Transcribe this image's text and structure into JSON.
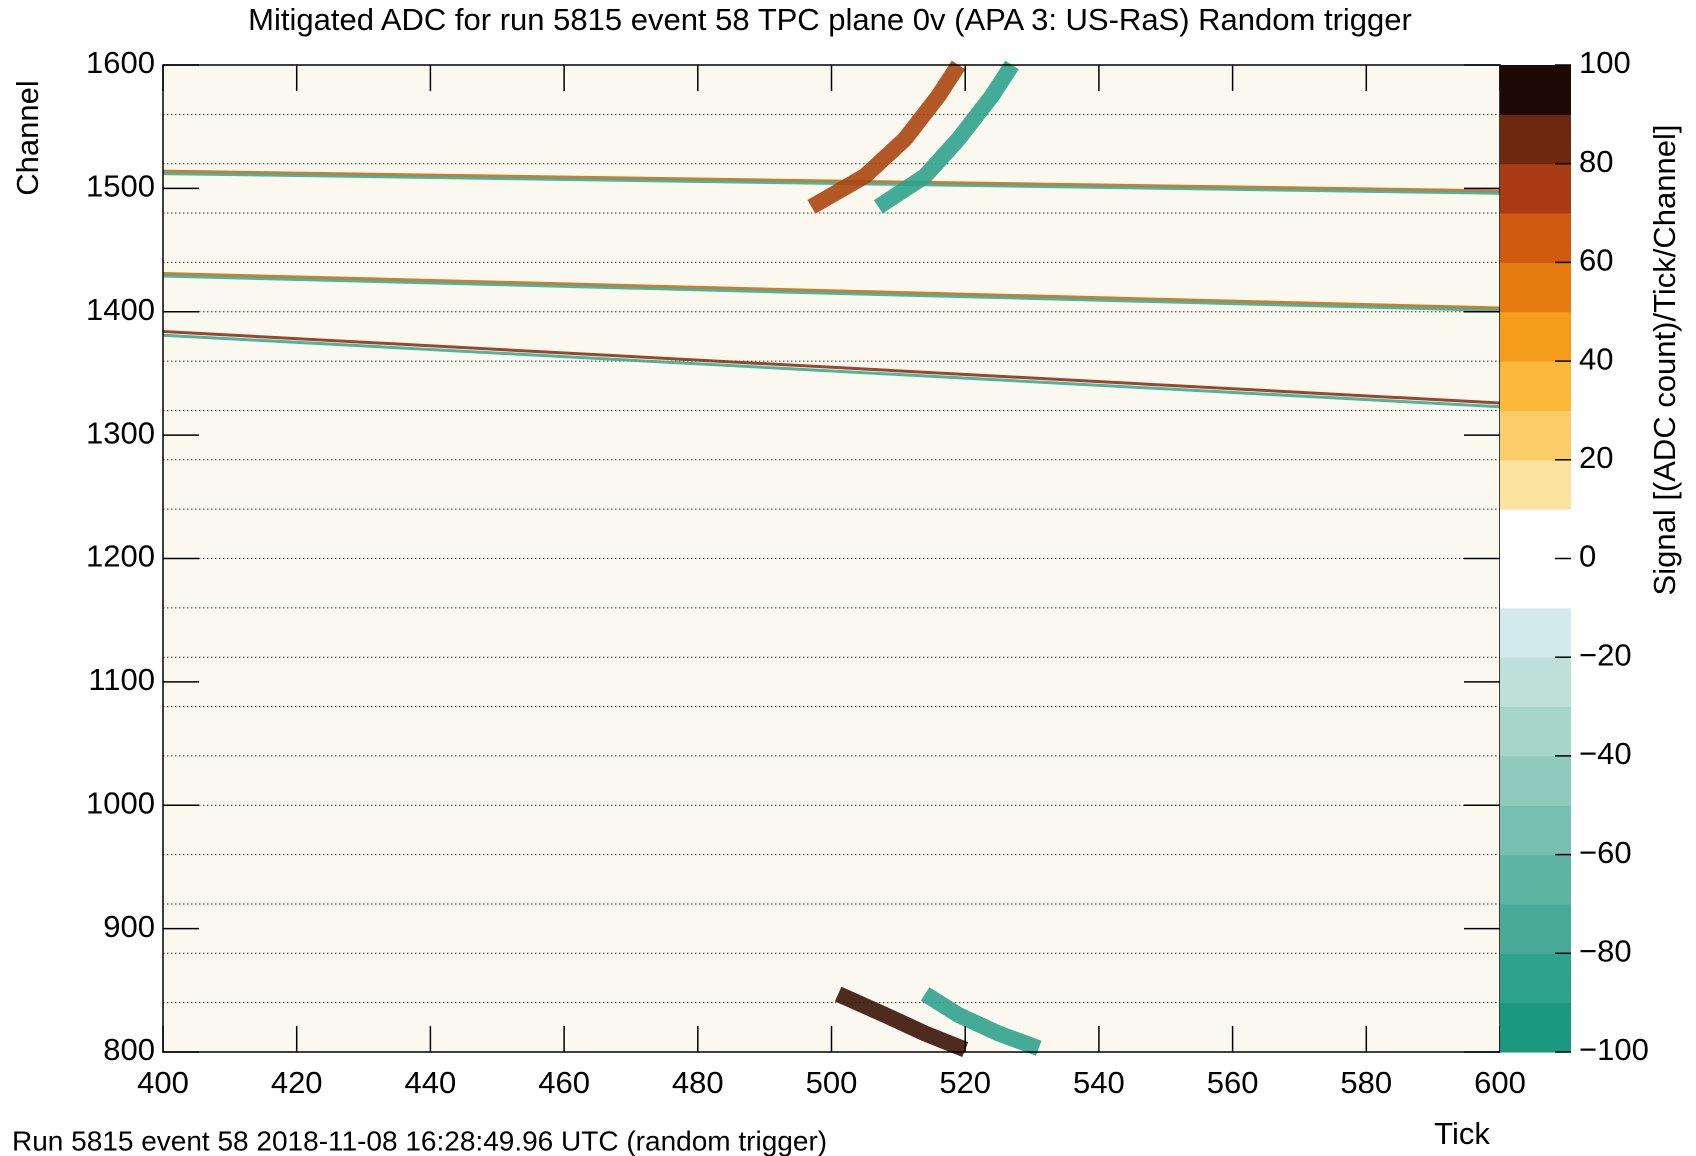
{
  "chart_data": {
    "type": "heatmap",
    "title": "Mitigated ADC for run 5815 event 58 TPC plane 0v (APA 3: US-RaS) Random trigger",
    "xlabel": "Tick",
    "ylabel": "Channel",
    "zlabel": "Signal [(ADC count)/Tick/Channel]",
    "footer": "Run 5815 event 58 2018-11-08 16:28:49.96 UTC (random trigger)",
    "xlim": [
      400,
      600
    ],
    "xticks": [
      400,
      420,
      440,
      460,
      480,
      500,
      520,
      540,
      560,
      580,
      600
    ],
    "ylim": [
      800,
      1600
    ],
    "yticks": [
      800,
      900,
      1000,
      1100,
      1200,
      1300,
      1400,
      1500,
      1600
    ],
    "hlines": [
      840,
      880,
      920,
      960,
      1000,
      1040,
      1080,
      1120,
      1160,
      1200,
      1240,
      1280,
      1320,
      1360,
      1400,
      1440,
      1480,
      1520,
      1560
    ],
    "zlim": [
      -100,
      100
    ],
    "zticks": [
      {
        "value": -100,
        "label": "−100"
      },
      {
        "value": -80,
        "label": "−80"
      },
      {
        "value": -60,
        "label": "−60"
      },
      {
        "value": -40,
        "label": "−40"
      },
      {
        "value": -20,
        "label": "−20"
      },
      0,
      20,
      40,
      60,
      80,
      100
    ],
    "palette": [
      "#1a9980",
      "#2fa28c",
      "#47ab98",
      "#5fb5a4",
      "#77c0b0",
      "#8fcabd",
      "#a7d5ca",
      "#bfe0d8",
      "#d3eaea",
      "#ffffff",
      "#ffffff",
      "#fde3a0",
      "#fbcd6a",
      "#fab93a",
      "#f59d1a",
      "#e67c10",
      "#cf5a10",
      "#a93c14",
      "#6e2810",
      "#1e0a05"
    ],
    "tracks": [
      {
        "x": [
          400,
          600
        ],
        "y": [
          1514,
          1498
        ],
        "color": "#c8700f"
      },
      {
        "x": [
          400,
          600
        ],
        "y": [
          1512,
          1496
        ],
        "color": "#3fa896"
      },
      {
        "x": [
          400,
          600
        ],
        "y": [
          1431,
          1403
        ],
        "color": "#c8700f"
      },
      {
        "x": [
          400,
          600
        ],
        "y": [
          1429,
          1401
        ],
        "color": "#3fa896"
      },
      {
        "x": [
          400,
          600
        ],
        "y": [
          1384,
          1326
        ],
        "color": "#8e3313"
      },
      {
        "x": [
          400,
          600
        ],
        "y": [
          1381,
          1323
        ],
        "color": "#3fa896"
      }
    ],
    "clusters": [
      {
        "x": [
          497,
          505,
          511,
          516,
          519
        ],
        "y": [
          1485,
          1510,
          1540,
          1575,
          1600
        ],
        "color": "#a9460f"
      },
      {
        "x": [
          507,
          514,
          519,
          524,
          527
        ],
        "y": [
          1485,
          1510,
          1540,
          1575,
          1600
        ],
        "color": "#2fa28c"
      },
      {
        "x": [
          501,
          508,
          514,
          520
        ],
        "y": [
          847,
          830,
          815,
          802
        ],
        "color": "#3a1408"
      },
      {
        "x": [
          514,
          519,
          525,
          531
        ],
        "y": [
          847,
          830,
          815,
          803
        ],
        "color": "#2fa28c"
      }
    ]
  }
}
